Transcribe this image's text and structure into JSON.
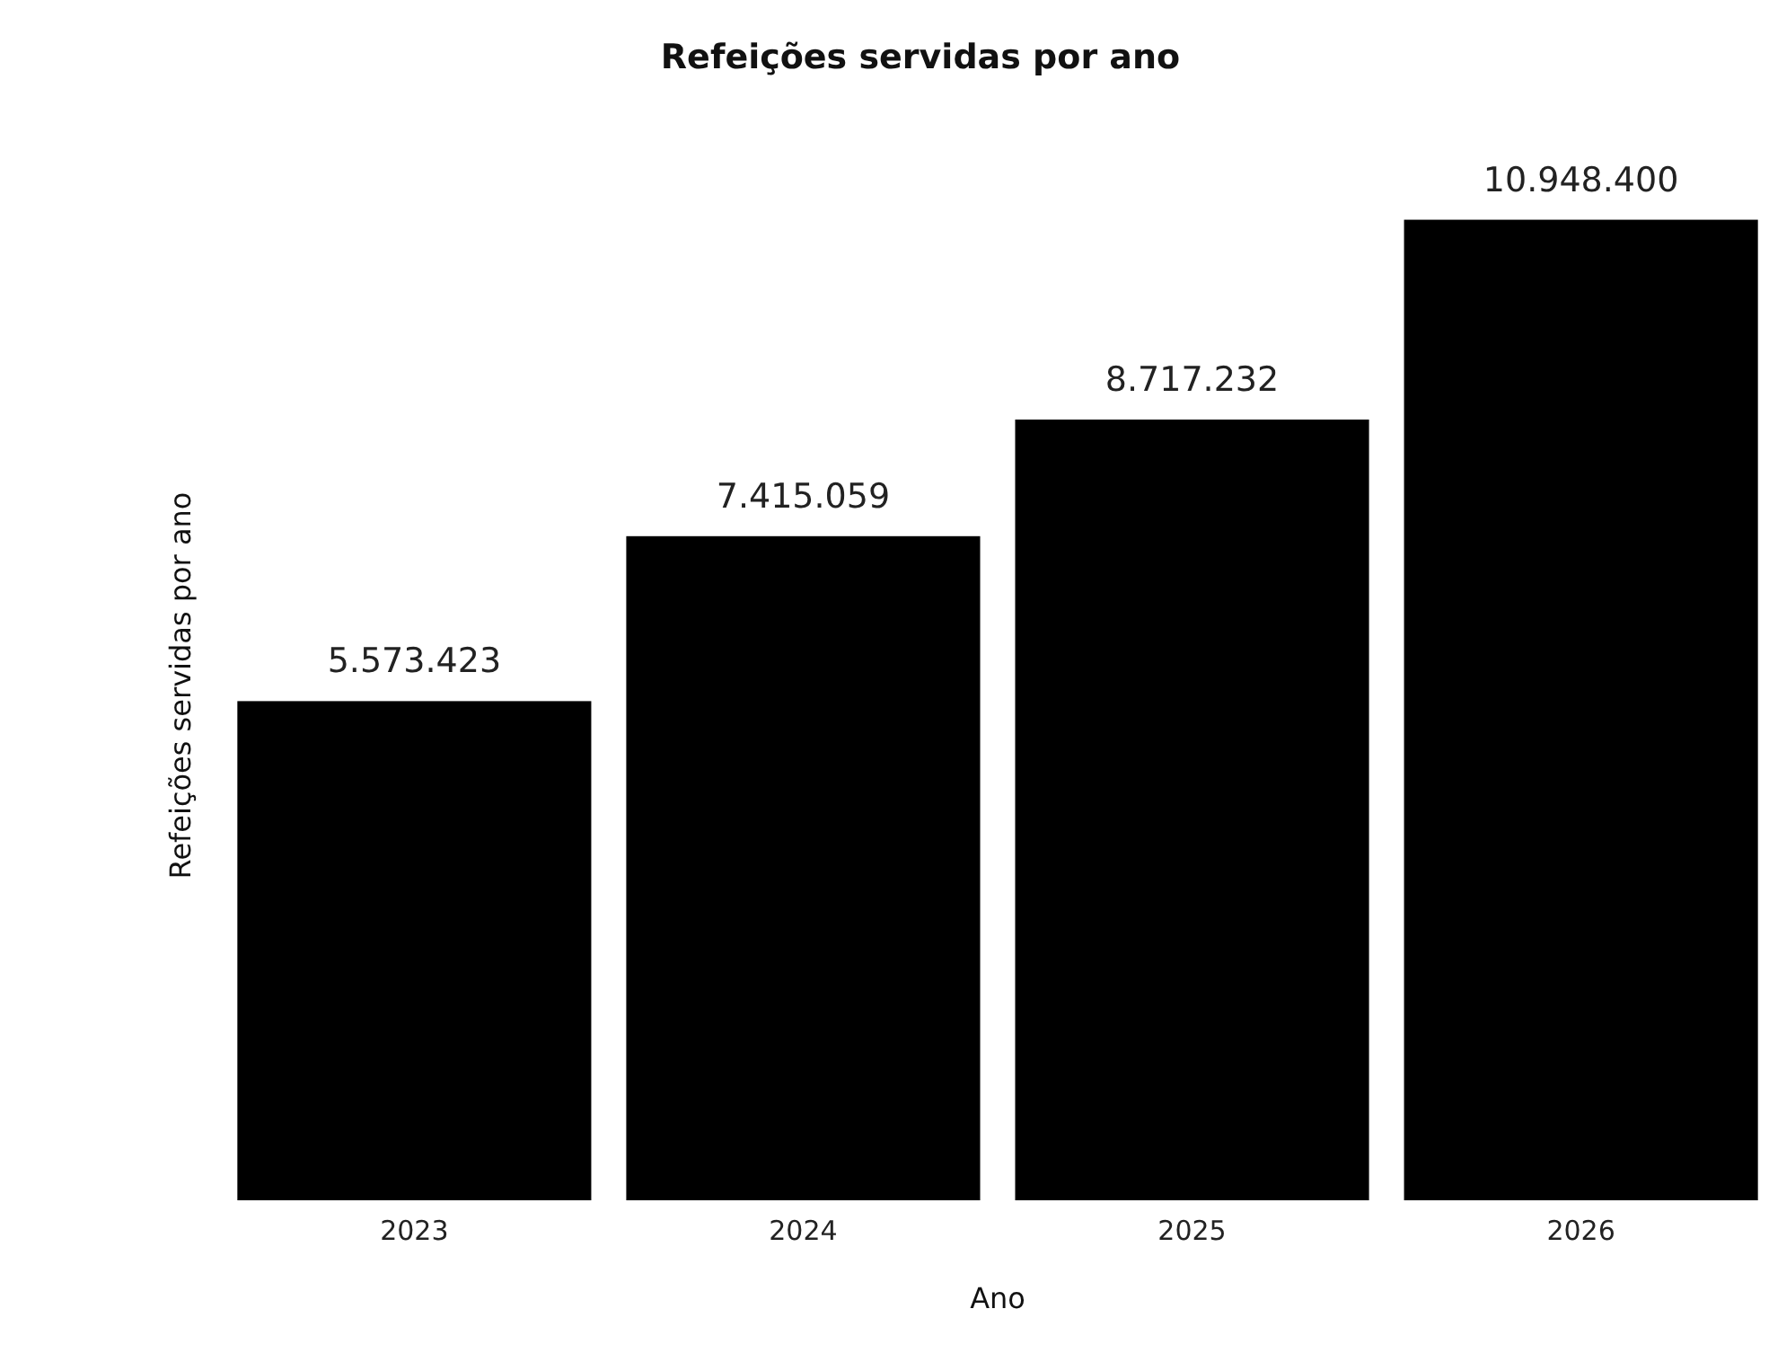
{
  "chart_data": {
    "type": "bar",
    "title": "Refeições servidas por ano",
    "xlabel": "Ano",
    "ylabel": "Refeições servidas por ano",
    "categories": [
      "2023",
      "2024",
      "2025",
      "2026"
    ],
    "values": [
      5573423,
      7415059,
      8717232,
      10948400
    ],
    "value_labels": [
      "5.573.423",
      "7.415.059",
      "8.717.232",
      "10.948.400"
    ],
    "color": "#000000"
  }
}
